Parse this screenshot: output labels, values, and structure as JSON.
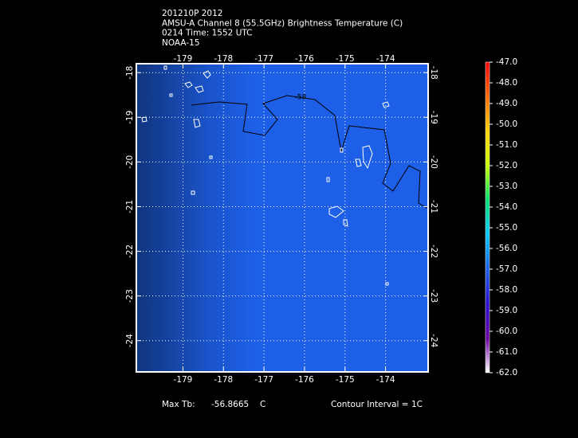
{
  "chart_data": {
    "type": "map",
    "title_lines": [
      "201210P 2012",
      "AMSU-A Channel 8 (55.5GHz) Brightness Temperature (C)",
      "0214 Time: 1552 UTC",
      "NOAA-15"
    ],
    "fill_color": "#1d5fe6",
    "xlim": [
      -180.15,
      -172.95
    ],
    "xticks": [
      -179,
      -178,
      -177,
      -176,
      -175,
      -174
    ],
    "ylim": [
      -24.7,
      -17.8
    ],
    "yticks": [
      -18,
      -19,
      -20,
      -21,
      -22,
      -23,
      -24
    ],
    "grid": true,
    "contour_label": {
      "text": "-58",
      "x": -176.1,
      "y": -18.55
    },
    "colorbar": {
      "range": [
        -62,
        -47
      ],
      "colors": [
        "#ffffff",
        "#6a00a0",
        "#2a10d0",
        "#1d5fe6",
        "#00c8ff",
        "#00e070",
        "#c8ff00",
        "#ffd000",
        "#ff6a00",
        "#ff0000"
      ],
      "ticks": [
        {
          "value": -47,
          "label": "-47.0"
        },
        {
          "value": -48,
          "label": "-48.0"
        },
        {
          "value": -49,
          "label": "-49.0"
        },
        {
          "value": -50,
          "label": "-50.0"
        },
        {
          "value": -51,
          "label": "-51.0"
        },
        {
          "value": -52,
          "label": "-52.0"
        },
        {
          "value": -53,
          "label": "-53.0"
        },
        {
          "value": -54,
          "label": "-54.0"
        },
        {
          "value": -55,
          "label": "-55.0"
        },
        {
          "value": -56,
          "label": "-56.0"
        },
        {
          "value": -57,
          "label": "-57.0"
        },
        {
          "value": -58,
          "label": "-58.0"
        },
        {
          "value": -59,
          "label": "-59.0"
        },
        {
          "value": -60,
          "label": "-60.0"
        },
        {
          "value": -61,
          "label": "-61.0"
        },
        {
          "value": -62,
          "label": "-62.0"
        }
      ]
    },
    "max_tb": {
      "label": "Max Tb:",
      "value": -56.8665,
      "unit": "C"
    },
    "contour_interval": "Contour Interval = 1C"
  }
}
